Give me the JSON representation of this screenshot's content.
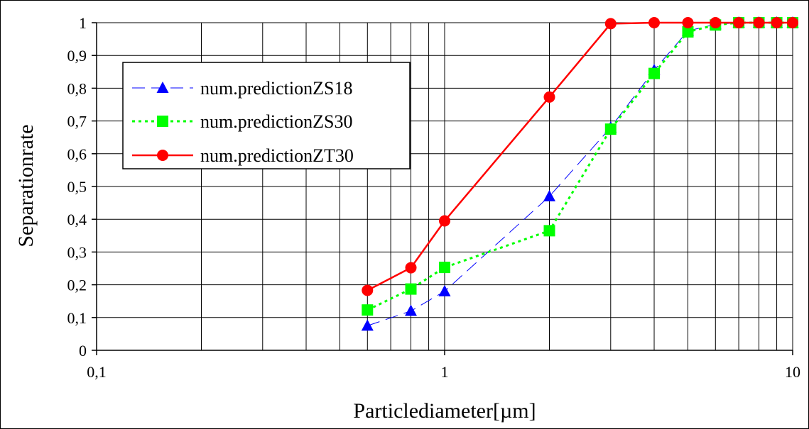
{
  "chart_data": {
    "type": "line",
    "xscale": "log",
    "xlim": [
      0.1,
      10
    ],
    "ylim": [
      0,
      1
    ],
    "grid": true,
    "xlabel": "Particlediameter[µm]",
    "ylabel": "Separationrate",
    "xticks": [
      {
        "value": 0.1,
        "label": "0,1"
      },
      {
        "value": 1,
        "label": "1"
      },
      {
        "value": 10,
        "label": "10"
      }
    ],
    "yticks": [
      {
        "value": 0,
        "label": "0"
      },
      {
        "value": 0.1,
        "label": "0,1"
      },
      {
        "value": 0.2,
        "label": "0,2"
      },
      {
        "value": 0.3,
        "label": "0,3"
      },
      {
        "value": 0.4,
        "label": "0,4"
      },
      {
        "value": 0.5,
        "label": "0,5"
      },
      {
        "value": 0.6,
        "label": "0,6"
      },
      {
        "value": 0.7,
        "label": "0,7"
      },
      {
        "value": 0.8,
        "label": "0,8"
      },
      {
        "value": 0.9,
        "label": "0,9"
      },
      {
        "value": 1,
        "label": "1"
      }
    ],
    "legend_position": "upper-left",
    "series": [
      {
        "name": "num.predictionZS18",
        "color": "#0000ff",
        "marker": "triangle",
        "line": "long-dash",
        "x": [
          0.6,
          0.8,
          1,
          2,
          3,
          4,
          5,
          6,
          7,
          8,
          9,
          10
        ],
        "y": [
          0.075,
          0.12,
          0.18,
          0.47,
          0.68,
          0.855,
          0.975,
          0.995,
          1.0,
          1.0,
          1.0,
          1.0
        ]
      },
      {
        "name": "num.predictionZS30",
        "color": "#00ff00",
        "marker": "square",
        "line": "dotted",
        "x": [
          0.6,
          0.8,
          1,
          2,
          3,
          4,
          5,
          6,
          7,
          8,
          9,
          10
        ],
        "y": [
          0.123,
          0.187,
          0.253,
          0.365,
          0.675,
          0.845,
          0.972,
          0.993,
          1.0,
          1.0,
          1.0,
          1.0
        ]
      },
      {
        "name": "num.predictionZT30",
        "color": "#ff0000",
        "marker": "circle",
        "line": "solid",
        "x": [
          0.6,
          0.8,
          1,
          2,
          3,
          4,
          5,
          6,
          7,
          8,
          9,
          10
        ],
        "y": [
          0.183,
          0.252,
          0.395,
          0.773,
          0.997,
          1.0,
          1.0,
          1.0,
          1.0,
          1.0,
          1.0,
          1.0
        ]
      }
    ]
  }
}
